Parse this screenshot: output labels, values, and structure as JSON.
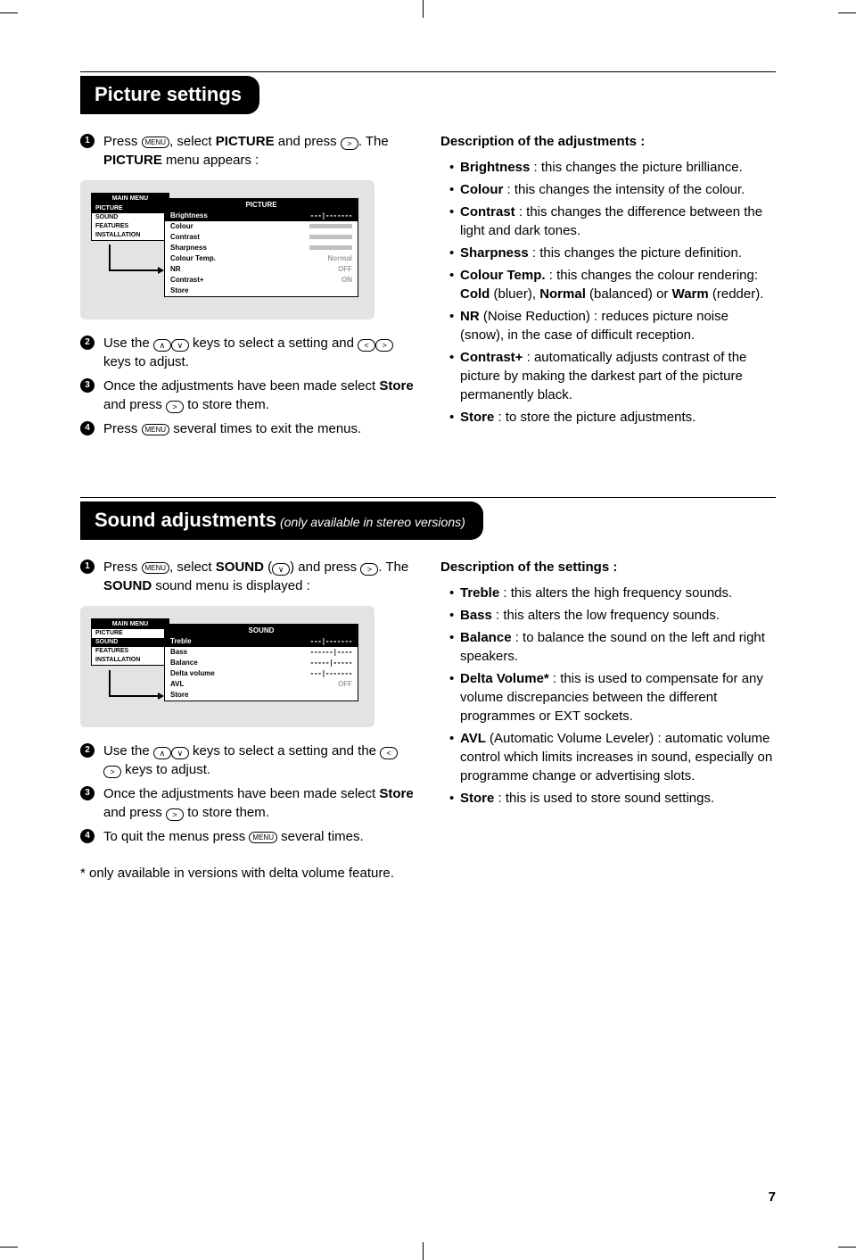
{
  "page_number": "7",
  "section1": {
    "title": "Picture settings",
    "steps": [
      {
        "num": "1",
        "parts": [
          "Press ",
          "MENU",
          ", select ",
          "PICTURE",
          " and press ",
          ">",
          ". The ",
          "PICTURE",
          " menu appears :"
        ]
      },
      {
        "num": "2",
        "parts": [
          "Use the ",
          "^",
          "v",
          " keys to select a setting and ",
          "<",
          ">",
          " keys to adjust."
        ]
      },
      {
        "num": "3",
        "parts": [
          "Once the adjustments have been made select ",
          "Store",
          " and press ",
          ">",
          " to store them."
        ]
      },
      {
        "num": "4",
        "parts": [
          "Press ",
          "MENU",
          " several times to exit the menus."
        ]
      }
    ],
    "osd": {
      "main_header": "MAIN MENU",
      "main_items": [
        "PICTURE",
        "SOUND",
        "FEATURES",
        "INSTALLATION"
      ],
      "main_selected": 0,
      "sub_header": "PICTURE",
      "sub_rows": [
        {
          "label": "Brightness",
          "val": "---|-------",
          "type": "text",
          "sel": true
        },
        {
          "label": "Colour",
          "val": "",
          "type": "bar"
        },
        {
          "label": "Contrast",
          "val": "",
          "type": "bar"
        },
        {
          "label": "Sharpness",
          "val": "",
          "type": "bar"
        },
        {
          "label": "Colour Temp.",
          "val": "Normal",
          "type": "val"
        },
        {
          "label": "NR",
          "val": "OFF",
          "type": "val"
        },
        {
          "label": "Contrast+",
          "val": "ON",
          "type": "val"
        },
        {
          "label": "Store",
          "val": "",
          "type": "none"
        }
      ]
    },
    "desc_heading": "Description of the adjustments :",
    "desc": [
      {
        "term": "Brightness",
        "text": " : this changes the picture brilliance."
      },
      {
        "term": "Colour",
        "text": " : this changes the intensity of the colour."
      },
      {
        "term": "Contrast",
        "text": " : this changes the difference between the light and dark tones."
      },
      {
        "term": "Sharpness",
        "text": " : this changes the picture definition."
      },
      {
        "term": "Colour Temp.",
        "text": " : this changes the colour rendering: ",
        "extra": [
          [
            "Cold",
            " (bluer), "
          ],
          [
            "Normal",
            " (balanced) or "
          ],
          [
            "Warm",
            " (redder)."
          ]
        ]
      },
      {
        "term": "NR",
        "text": " (Noise Reduction) : reduces picture noise (snow), in the case of difficult reception."
      },
      {
        "term": "Contrast+",
        "text": " : automatically adjusts contrast of the picture by making the darkest part of the picture permanently black."
      },
      {
        "term": "Store",
        "text": " : to store the picture adjustments."
      }
    ]
  },
  "section2": {
    "title": "Sound adjustments",
    "subtitle": " (only available in stereo versions)",
    "steps": [
      {
        "num": "1",
        "parts": [
          "Press ",
          "MENU",
          ", select ",
          "SOUND",
          " (",
          "v",
          ") and press ",
          ">",
          ". The ",
          "SOUND",
          " sound menu is displayed :"
        ]
      },
      {
        "num": "2",
        "parts": [
          "Use the ",
          "^",
          "v",
          " keys to select a setting and the ",
          "<",
          ">",
          " keys to adjust."
        ]
      },
      {
        "num": "3",
        "parts": [
          "Once the adjustments have been made select ",
          "Store",
          " and press ",
          ">",
          " to store them."
        ]
      },
      {
        "num": "4",
        "parts": [
          "To quit the menus press ",
          "MENU",
          " several times."
        ]
      }
    ],
    "osd": {
      "main_header": "MAIN MENU",
      "main_items": [
        "PICTURE",
        "SOUND",
        "FEATURES",
        "INSTALLATION"
      ],
      "main_selected": 1,
      "sub_header": "SOUND",
      "sub_rows": [
        {
          "label": "Treble",
          "val": "---|-------",
          "type": "text",
          "sel": true
        },
        {
          "label": "Bass",
          "val": "------|----",
          "type": "text"
        },
        {
          "label": "Balance",
          "val": "-----|-----",
          "type": "text"
        },
        {
          "label": "Delta volume",
          "val": "---|-------",
          "type": "text"
        },
        {
          "label": "AVL",
          "val": "OFF",
          "type": "val"
        },
        {
          "label": "Store",
          "val": "",
          "type": "none"
        }
      ]
    },
    "desc_heading": "Description of the settings :",
    "desc": [
      {
        "term": "Treble",
        "text": " : this alters the high frequency sounds."
      },
      {
        "term": "Bass",
        "text": " : this alters the low frequency sounds."
      },
      {
        "term": "Balance",
        "text": " : to balance the sound on the left and right speakers."
      },
      {
        "term": "Delta Volume*",
        "text": " : this is used to compensate for any volume discrepancies between the different programmes or EXT sockets."
      },
      {
        "term": "AVL",
        "text": " (Automatic Volume Leveler) : automatic volume control which limits increases in sound, especially on programme change or advertising slots."
      },
      {
        "term": "Store",
        "text": " : this is used to store sound settings."
      }
    ],
    "footnote": "* only available in versions with delta volume feature."
  }
}
